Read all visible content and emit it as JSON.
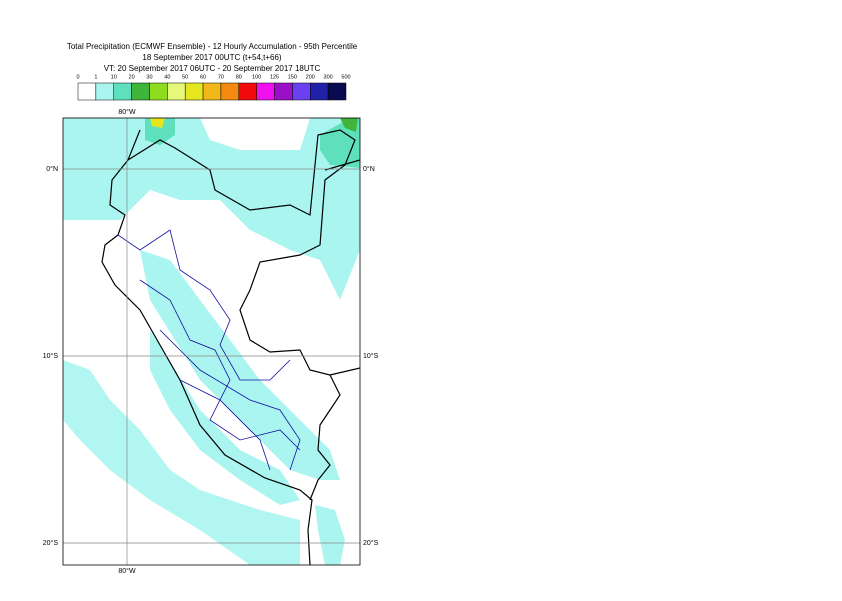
{
  "header": {
    "title_lines": [
      "Total Precipitation (ECMWF Ensemble) - 12 Hourly Accumulation - 95th Percentile",
      "18 September 2017 00UTC (t+54,t+66)",
      "VT: 20 September 2017 06UTC - 20 September 2017 18UTC"
    ]
  },
  "colorbar": {
    "labels": [
      0,
      1,
      10,
      20,
      30,
      40,
      50,
      60,
      70,
      80,
      100,
      125,
      150,
      200,
      300,
      500
    ],
    "colors": [
      "#ffffff",
      "#aaf5f0",
      "#5fe0bd",
      "#3fb53a",
      "#8fdc1e",
      "#e6f87a",
      "#e6e61e",
      "#f2b81a",
      "#f58a10",
      "#f00a0a",
      "#ee10ee",
      "#9a10c8",
      "#6a40f0",
      "#2020a8",
      "#0a0a50"
    ]
  },
  "map": {
    "grid_labels": {
      "lon_top": "80°W",
      "lon_bottom": "80°W",
      "lat_left": [
        "0°N",
        "10°S",
        "20°S"
      ],
      "lat_right": [
        "0°N",
        "10°S",
        "20°S"
      ]
    }
  }
}
